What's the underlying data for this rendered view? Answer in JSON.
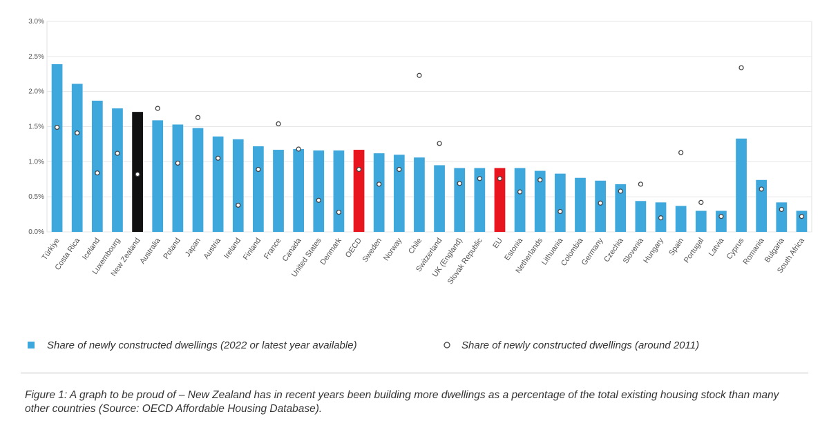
{
  "chart_data": {
    "type": "bar",
    "categories": [
      "Türkiye",
      "Costa Rica",
      "Iceland",
      "Luxembourg",
      "New Zealand",
      "Australia",
      "Poland",
      "Japan",
      "Austria",
      "Ireland",
      "Finland",
      "France",
      "Canada",
      "United States",
      "Denmark",
      "OECD",
      "Sweden",
      "Norway",
      "Chile",
      "Switzerland",
      "UK (England)",
      "Slovak Republic",
      "EU",
      "Estonia",
      "Netherlands",
      "Lithuania",
      "Colombia",
      "Germany",
      "Czechia",
      "Slovenia",
      "Hungary",
      "Spain",
      "Portugal",
      "Latvia",
      "Cyprus",
      "Romania",
      "Bulgaria",
      "South Africa"
    ],
    "series": [
      {
        "name": "Share of newly constructed dwellings (2022 or latest year available)",
        "type": "bar",
        "color": "#3ea8dc",
        "colors": [
          "#3ea8dc",
          "#3ea8dc",
          "#3ea8dc",
          "#3ea8dc",
          "#111111",
          "#3ea8dc",
          "#3ea8dc",
          "#3ea8dc",
          "#3ea8dc",
          "#3ea8dc",
          "#3ea8dc",
          "#3ea8dc",
          "#3ea8dc",
          "#3ea8dc",
          "#3ea8dc",
          "#e8151f",
          "#3ea8dc",
          "#3ea8dc",
          "#3ea8dc",
          "#3ea8dc",
          "#3ea8dc",
          "#3ea8dc",
          "#e8151f",
          "#3ea8dc",
          "#3ea8dc",
          "#3ea8dc",
          "#3ea8dc",
          "#3ea8dc",
          "#3ea8dc",
          "#3ea8dc",
          "#3ea8dc",
          "#3ea8dc",
          "#3ea8dc",
          "#3ea8dc",
          "#3ea8dc",
          "#3ea8dc",
          "#3ea8dc",
          "#3ea8dc"
        ],
        "values": [
          2.39,
          2.11,
          1.87,
          1.76,
          1.71,
          1.59,
          1.53,
          1.48,
          1.36,
          1.32,
          1.22,
          1.17,
          1.18,
          1.16,
          1.16,
          1.17,
          1.12,
          1.1,
          1.06,
          0.95,
          0.91,
          0.91,
          0.91,
          0.91,
          0.87,
          0.83,
          0.77,
          0.73,
          0.68,
          0.44,
          0.42,
          0.37,
          0.3,
          0.3,
          1.33,
          0.74,
          0.42,
          0.3
        ]
      },
      {
        "name": "Share of newly constructed dwellings (around 2011)",
        "type": "scatter",
        "color": "#444444",
        "values": [
          1.49,
          1.41,
          0.84,
          1.12,
          0.82,
          1.76,
          0.98,
          1.63,
          1.05,
          0.38,
          0.89,
          1.54,
          1.18,
          0.45,
          0.28,
          0.89,
          0.68,
          0.89,
          2.23,
          1.26,
          0.69,
          0.76,
          0.76,
          0.57,
          0.74,
          0.29,
          null,
          0.41,
          0.58,
          0.68,
          0.2,
          1.13,
          0.42,
          0.22,
          2.34,
          0.61,
          0.32,
          0.22
        ]
      }
    ],
    "ylim": [
      0,
      3
    ],
    "yticks": [
      {
        "value": 0,
        "label": "0.0%"
      },
      {
        "value": 0.5,
        "label": "0.5%"
      },
      {
        "value": 1,
        "label": "1.0%"
      },
      {
        "value": 1.5,
        "label": "1.5%"
      },
      {
        "value": 2,
        "label": "2.0%"
      },
      {
        "value": 2.5,
        "label": "2.5%"
      },
      {
        "value": 3,
        "label": "3.0%"
      }
    ],
    "grid": true,
    "caption": "Figure 1: A graph to be proud of – New Zealand has in recent years been building more dwellings as a percentage of the total existing housing stock than many other countries (Source: OECD Affordable Housing Database)."
  }
}
